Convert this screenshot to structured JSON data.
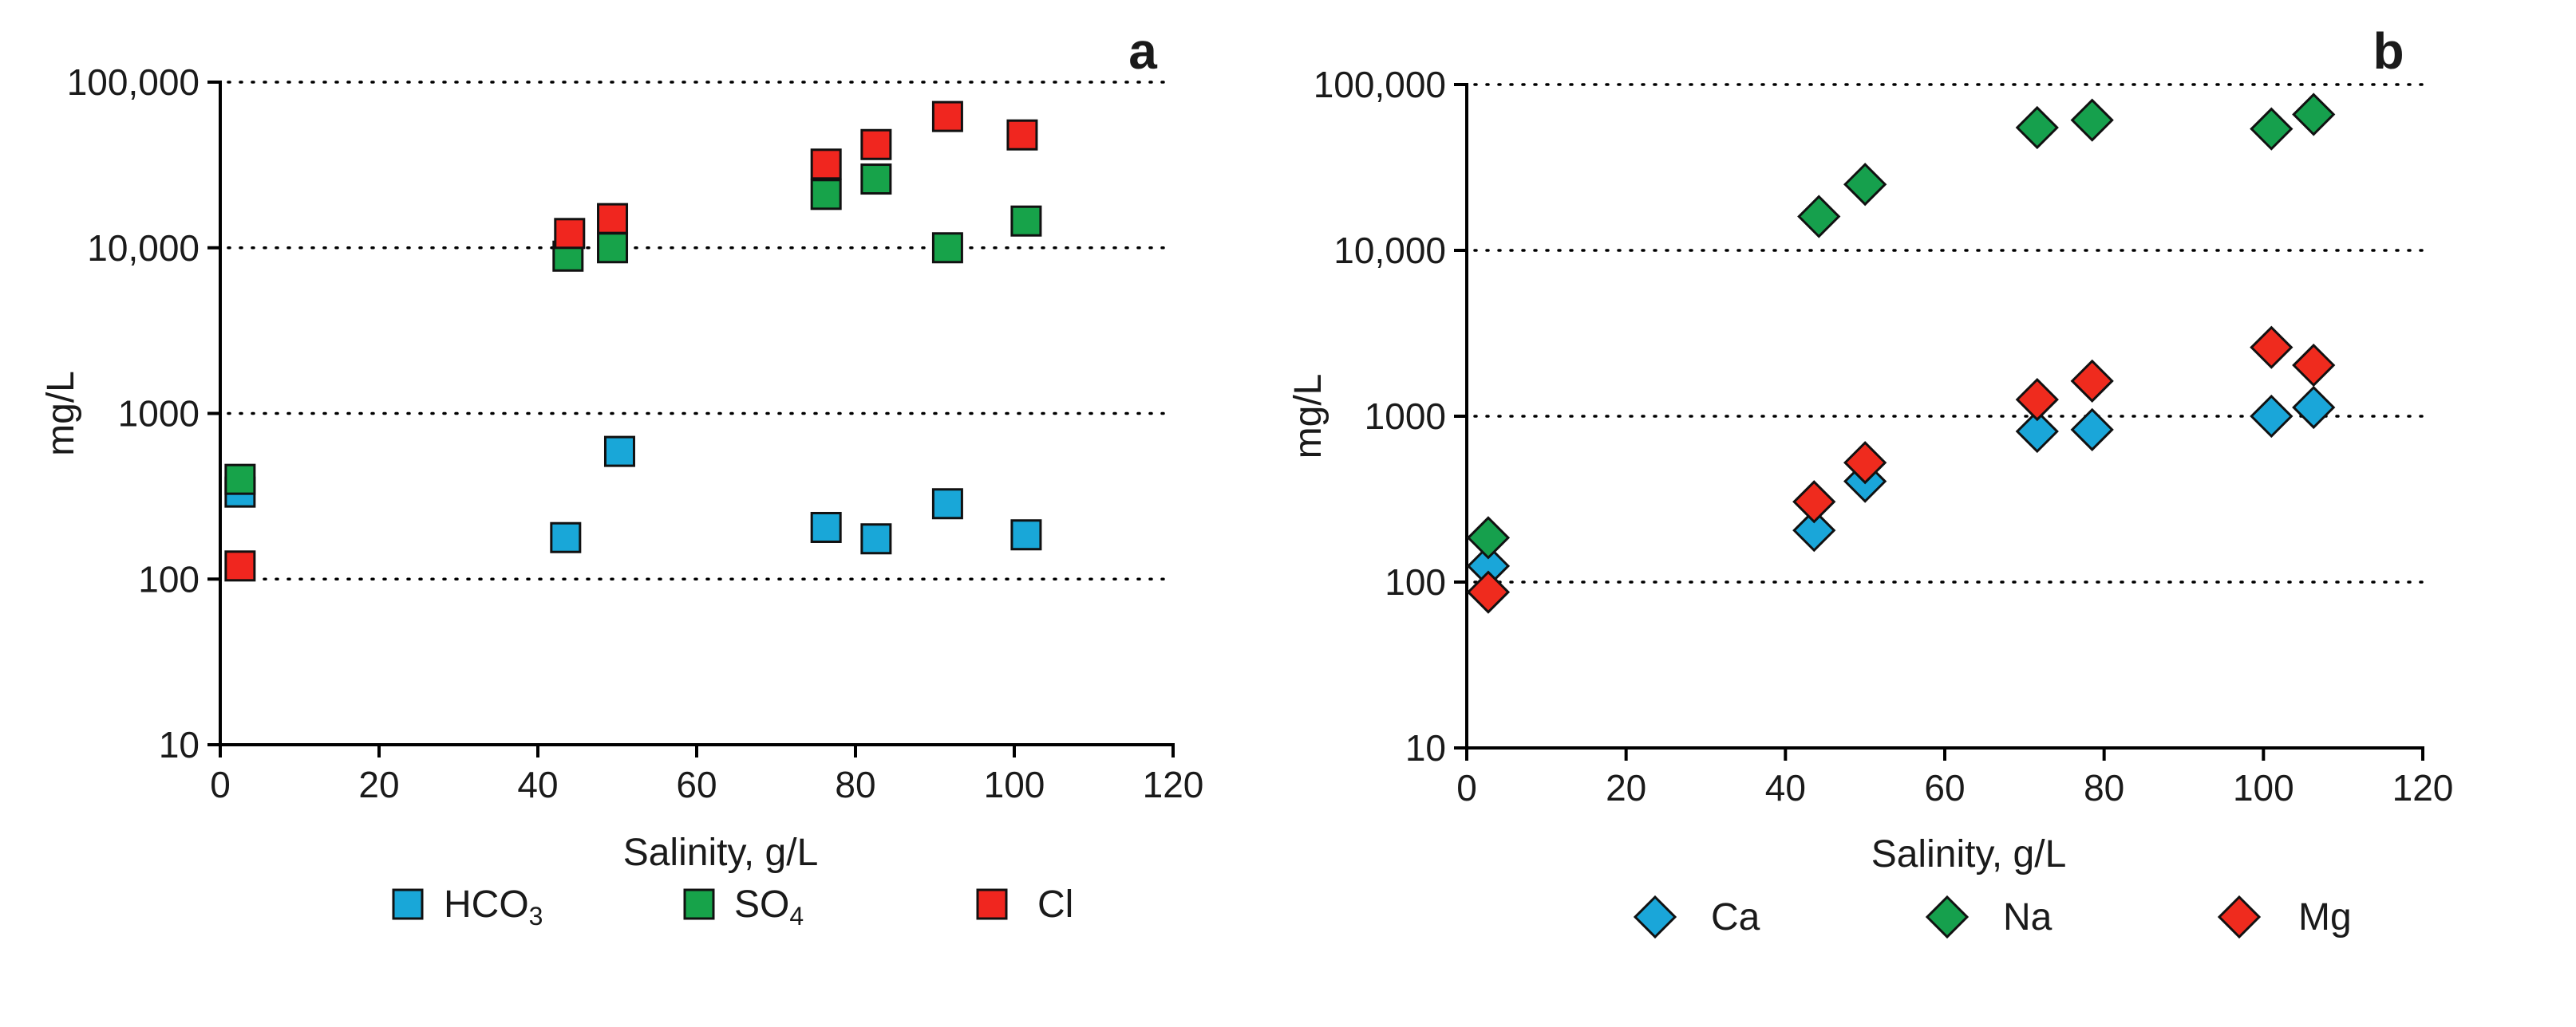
{
  "colors": {
    "HCO3": "#19a7d8",
    "SO4": "#17a34a",
    "Cl": "#f0261f",
    "Ca": "#1aa6d9",
    "Na": "#16a04d",
    "Mg": "#ef2b1e"
  },
  "chart_data": [
    {
      "type": "scatter",
      "panel_label": "a",
      "xlabel": "Salinity, g/L",
      "ylabel": "mg/L",
      "xlim": [
        0,
        120
      ],
      "ylim": [
        10,
        100000
      ],
      "y_scale": "log",
      "x_ticks": [
        "0",
        "20",
        "40",
        "60",
        "80",
        "100",
        "120"
      ],
      "y_ticks": [
        "10",
        "100",
        "1000",
        "10,000",
        "100,000"
      ],
      "grid": "horizontal dotted at 100, 1000, 10,000, 100,000",
      "marker": "square",
      "legend_position": "bottom",
      "series": [
        {
          "name": "HCO3",
          "label_main": "HCO",
          "label_sub": "3",
          "color_key": "HCO3",
          "x": [
            2.5,
            43.5,
            50.3,
            76.3,
            82.6,
            91.6,
            101.5
          ],
          "y": [
            335,
            178,
            590,
            205,
            175,
            285,
            185
          ]
        },
        {
          "name": "SO4",
          "label_main": "SO",
          "label_sub": "4",
          "color_key": "SO4",
          "x": [
            2.5,
            43.8,
            49.4,
            76.3,
            82.6,
            91.6,
            101.5
          ],
          "y": [
            400,
            8900,
            10000,
            21000,
            26000,
            10000,
            14500
          ]
        },
        {
          "name": "Cl",
          "label_main": "Cl",
          "label_sub": "",
          "color_key": "Cl",
          "x": [
            2.5,
            44.0,
            49.4,
            76.3,
            82.6,
            91.6,
            101.0
          ],
          "y": [
            120,
            12200,
            15000,
            32000,
            42000,
            62000,
            48000
          ]
        }
      ]
    },
    {
      "type": "scatter",
      "panel_label": "b",
      "xlabel": "Salinity, g/L",
      "ylabel": "mg/L",
      "xlim": [
        0,
        120
      ],
      "ylim": [
        10,
        100000
      ],
      "y_scale": "log",
      "x_ticks": [
        "0",
        "20",
        "40",
        "60",
        "80",
        "100",
        "120"
      ],
      "y_ticks": [
        "10",
        "100",
        "1000",
        "10,000",
        "100,000"
      ],
      "grid": "horizontal dotted at 100, 1000, 10,000, 100,000",
      "marker": "diamond",
      "legend_position": "bottom",
      "series": [
        {
          "name": "Ca",
          "label_main": "Ca",
          "label_sub": "",
          "color_key": "Ca",
          "x": [
            2.7,
            43.6,
            50.0,
            71.6,
            78.5,
            101.0,
            106.3
          ],
          "y": [
            125,
            205,
            405,
            810,
            830,
            1000,
            1130
          ]
        },
        {
          "name": "Na",
          "label_main": "Na",
          "label_sub": "",
          "color_key": "Na",
          "x": [
            2.7,
            44.2,
            50.0,
            71.6,
            78.5,
            101.0,
            106.3
          ],
          "y": [
            185,
            16000,
            25000,
            55000,
            61000,
            54000,
            66000
          ]
        },
        {
          "name": "Mg",
          "label_main": "Mg",
          "label_sub": "",
          "color_key": "Mg",
          "x": [
            2.7,
            43.6,
            50.0,
            71.6,
            78.5,
            101.0,
            106.3
          ],
          "y": [
            87,
            305,
            525,
            1260,
            1630,
            2600,
            2030
          ]
        }
      ]
    }
  ]
}
